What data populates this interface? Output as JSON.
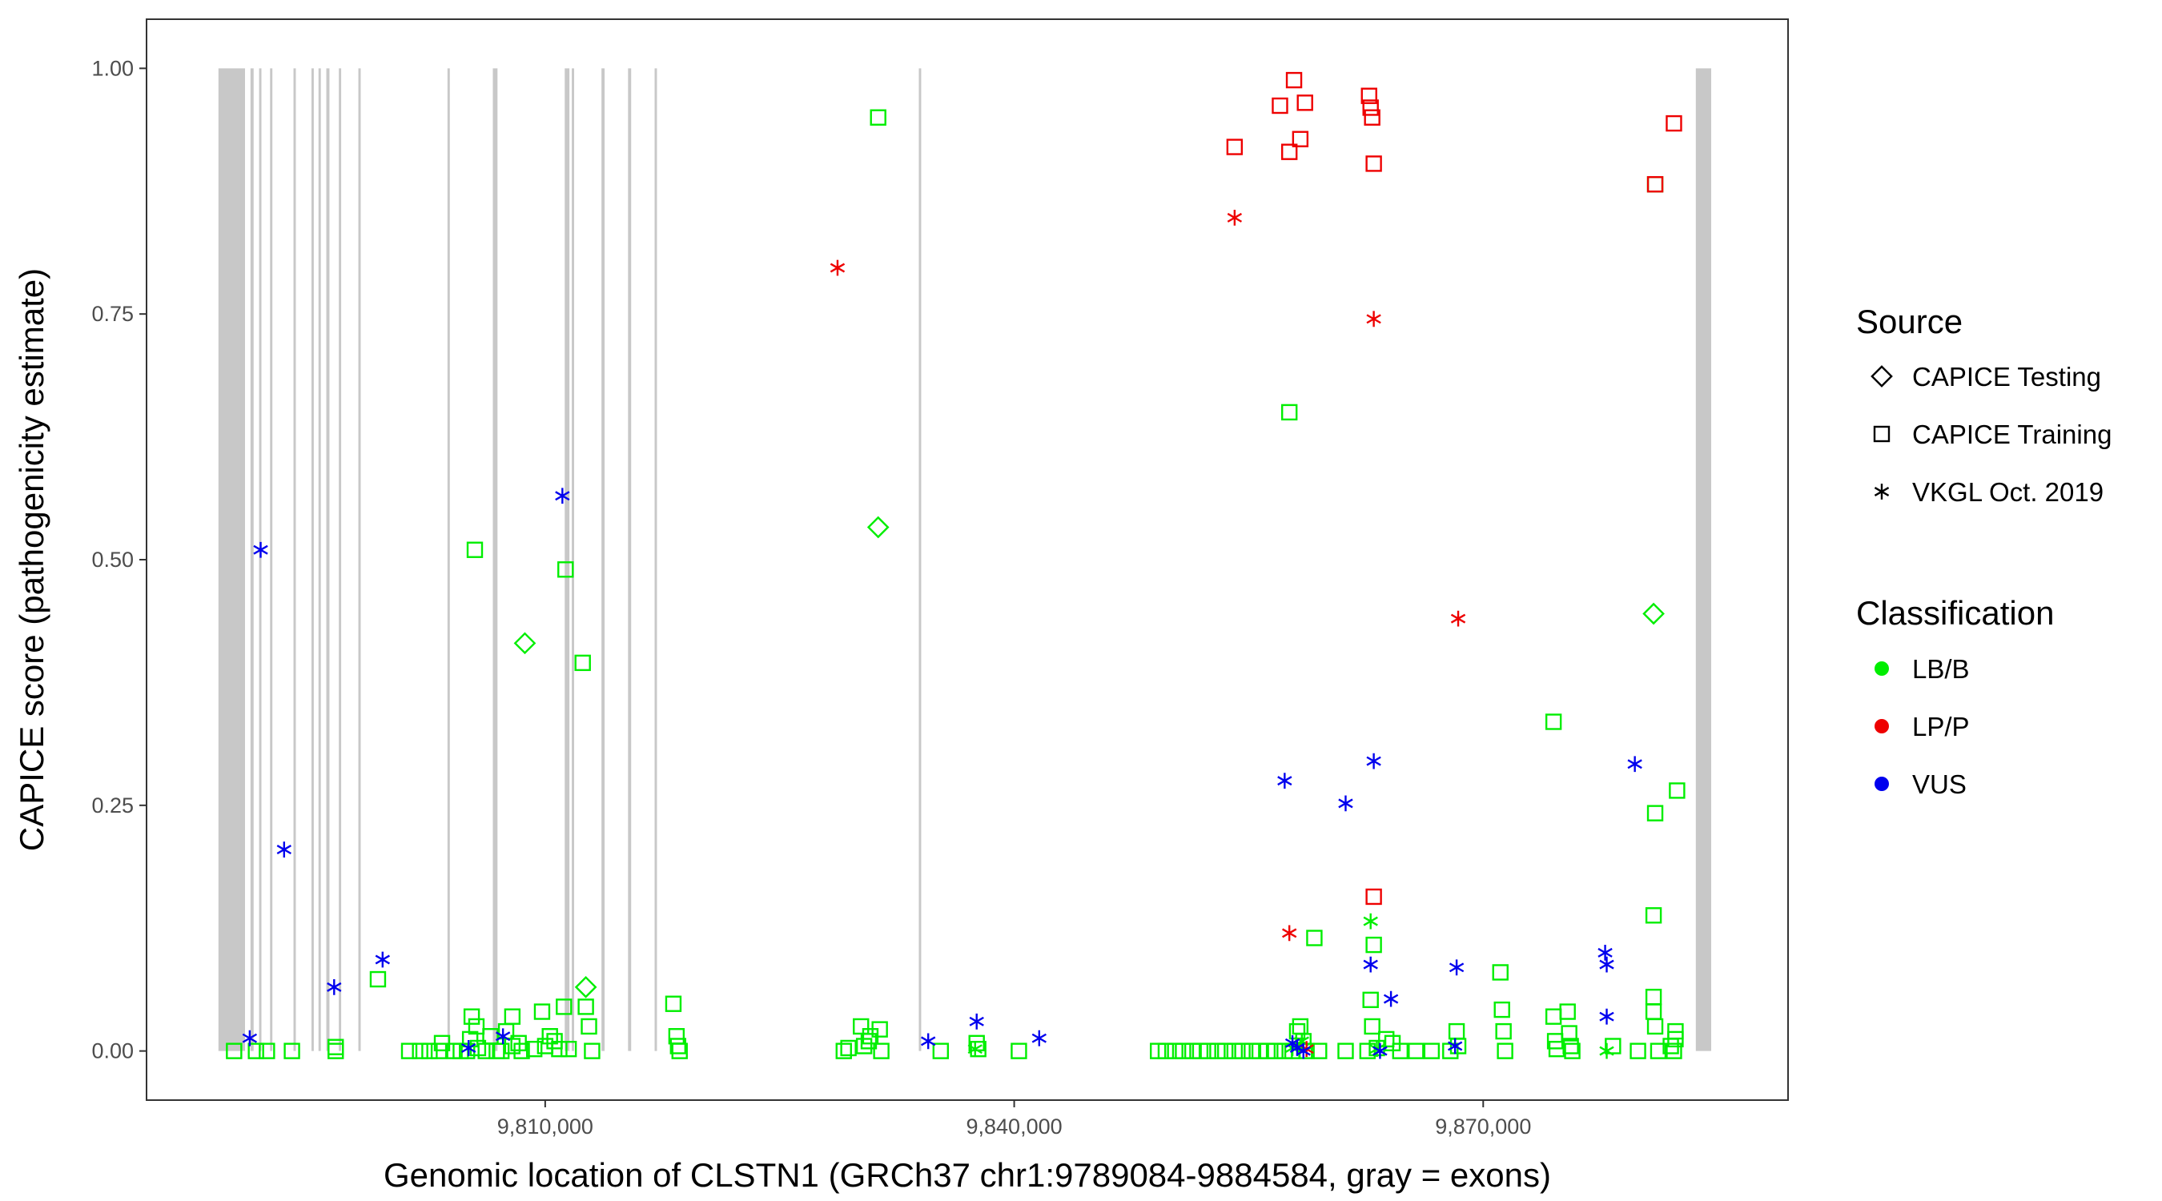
{
  "chart_data": {
    "type": "scatter",
    "title": "",
    "xlabel": "Genomic location of CLSTN1 (GRCh37 chr1:9789084-9884584, gray = exons)",
    "ylabel": "CAPICE score (pathogenicity estimate)",
    "xlim": [
      9784500,
      9889500
    ],
    "ylim": [
      -0.05,
      1.05
    ],
    "x_ticks": [
      9810000,
      9840000,
      9870000
    ],
    "x_tick_labels": [
      "9,810,000",
      "9,840,000",
      "9,870,000"
    ],
    "y_ticks": [
      0.0,
      0.25,
      0.5,
      0.75,
      1.0
    ],
    "y_tick_labels": [
      "0.00",
      "0.25",
      "0.50",
      "0.75",
      "1.00"
    ],
    "grid": false,
    "exon_color": "#c8c8c8",
    "exons": [
      [
        9789100,
        9790800
      ],
      [
        9791150,
        9791350
      ],
      [
        9791700,
        9791850
      ],
      [
        9792400,
        9792550
      ],
      [
        9793900,
        9794050
      ],
      [
        9795050,
        9795200
      ],
      [
        9795500,
        9795650
      ],
      [
        9796000,
        9796200
      ],
      [
        9796800,
        9796950
      ],
      [
        9798050,
        9798200
      ],
      [
        9803750,
        9803900
      ],
      [
        9806650,
        9806950
      ],
      [
        9811250,
        9811550
      ],
      [
        9811700,
        9811850
      ],
      [
        9813600,
        9813800
      ],
      [
        9815300,
        9815500
      ],
      [
        9817000,
        9817150
      ],
      [
        9833900,
        9834050
      ],
      [
        9883600,
        9884584
      ]
    ],
    "legend": {
      "placement": "right",
      "source_title": "Source",
      "classification_title": "Classification",
      "sources": [
        {
          "label": "CAPICE Testing",
          "shape": "diamond"
        },
        {
          "label": "CAPICE Training",
          "shape": "square"
        },
        {
          "label": "VKGL Oct. 2019",
          "shape": "asterisk"
        }
      ],
      "classifications": [
        {
          "label": "LB/B",
          "color": "#00ee00"
        },
        {
          "label": "LP/P",
          "color": "#ee0000"
        },
        {
          "label": "VUS",
          "color": "#0000ee"
        }
      ]
    },
    "series": [
      {
        "source": "CAPICE Training",
        "classification": "LB/B",
        "shape": "square",
        "color": "#00ee00",
        "points": [
          [
            9790100,
            0
          ],
          [
            9791500,
            0
          ],
          [
            9792200,
            0
          ],
          [
            9793800,
            0
          ],
          [
            9796600,
            0
          ],
          [
            9796600,
            0.004
          ],
          [
            9799300,
            0.073
          ],
          [
            9801300,
            0
          ],
          [
            9802000,
            0
          ],
          [
            9802600,
            0
          ],
          [
            9803200,
            0
          ],
          [
            9803400,
            0.008
          ],
          [
            9804200,
            0
          ],
          [
            9804600,
            0
          ],
          [
            9805000,
            0
          ],
          [
            9805200,
            0.012
          ],
          [
            9805300,
            0.035
          ],
          [
            9805500,
            0.51
          ],
          [
            9805600,
            0.025
          ],
          [
            9805700,
            0.003
          ],
          [
            9806200,
            0
          ],
          [
            9806500,
            0.015
          ],
          [
            9806900,
            0
          ],
          [
            9807200,
            0
          ],
          [
            9807500,
            0.02
          ],
          [
            9807900,
            0.035
          ],
          [
            9807900,
            0.005
          ],
          [
            9808300,
            0.008
          ],
          [
            9808500,
            0
          ],
          [
            9809300,
            0.002
          ],
          [
            9809800,
            0.04
          ],
          [
            9810000,
            0.005
          ],
          [
            9810300,
            0.015
          ],
          [
            9810600,
            0.01
          ],
          [
            9810900,
            0.002
          ],
          [
            9811200,
            0.045
          ],
          [
            9811300,
            0.49
          ],
          [
            9811500,
            0.002
          ],
          [
            9812400,
            0.395
          ],
          [
            9812600,
            0.045
          ],
          [
            9812800,
            0.025
          ],
          [
            9813000,
            0
          ],
          [
            9818200,
            0.048
          ],
          [
            9818400,
            0.015
          ],
          [
            9818500,
            0.005
          ],
          [
            9818600,
            0
          ],
          [
            9829100,
            0
          ],
          [
            9829400,
            0.003
          ],
          [
            9830200,
            0.025
          ],
          [
            9830400,
            0.005
          ],
          [
            9830700,
            0.01
          ],
          [
            9830800,
            0.015
          ],
          [
            9831300,
            0.95
          ],
          [
            9831400,
            0.022
          ],
          [
            9831500,
            0
          ],
          [
            9835300,
            0
          ],
          [
            9837600,
            0.008
          ],
          [
            9837700,
            0.002
          ],
          [
            9840300,
            0
          ],
          [
            9849200,
            0
          ],
          [
            9849700,
            0
          ],
          [
            9850300,
            0
          ],
          [
            9850800,
            0
          ],
          [
            9851400,
            0
          ],
          [
            9851900,
            0
          ],
          [
            9852400,
            0
          ],
          [
            9853000,
            0
          ],
          [
            9853500,
            0
          ],
          [
            9854100,
            0
          ],
          [
            9854600,
            0
          ],
          [
            9855200,
            0
          ],
          [
            9855700,
            0
          ],
          [
            9856200,
            0
          ],
          [
            9856700,
            0
          ],
          [
            9857300,
            0
          ],
          [
            9857600,
            0.65
          ],
          [
            9857800,
            0
          ],
          [
            9858100,
            0.02
          ],
          [
            9858300,
            0.025
          ],
          [
            9858500,
            0.01
          ],
          [
            9858700,
            0
          ],
          [
            9859200,
            0.115
          ],
          [
            9859500,
            0
          ],
          [
            9861200,
            0
          ],
          [
            9862600,
            0
          ],
          [
            9862800,
            0.052
          ],
          [
            9862900,
            0.025
          ],
          [
            9863000,
            0.108
          ],
          [
            9863200,
            0.003
          ],
          [
            9863800,
            0.012
          ],
          [
            9864200,
            0.008
          ],
          [
            9864700,
            0
          ],
          [
            9865700,
            0
          ],
          [
            9866700,
            0
          ],
          [
            9867900,
            0
          ],
          [
            9868300,
            0.02
          ],
          [
            9868400,
            0.005
          ],
          [
            9871100,
            0.08
          ],
          [
            9871200,
            0.042
          ],
          [
            9871300,
            0.02
          ],
          [
            9871400,
            0
          ],
          [
            9874500,
            0.335
          ],
          [
            9874500,
            0.035
          ],
          [
            9874600,
            0.01
          ],
          [
            9874700,
            0.002
          ],
          [
            9875400,
            0.04
          ],
          [
            9875500,
            0.018
          ],
          [
            9875600,
            0.005
          ],
          [
            9875700,
            0
          ],
          [
            9878300,
            0.005
          ],
          [
            9879900,
            0
          ],
          [
            9880900,
            0.055
          ],
          [
            9880900,
            0.04
          ],
          [
            9880900,
            0.138
          ],
          [
            9881000,
            0.882
          ],
          [
            9881000,
            0.242
          ],
          [
            9881000,
            0.025
          ],
          [
            9881200,
            0
          ],
          [
            9882000,
            0.005
          ],
          [
            9882200,
            0
          ],
          [
            9882300,
            0.012
          ],
          [
            9882300,
            0.02
          ],
          [
            9882400,
            0.265
          ]
        ]
      },
      {
        "source": "CAPICE Training",
        "classification": "LP/P",
        "shape": "square",
        "color": "#ee0000",
        "points": [
          [
            9854100,
            0.92
          ],
          [
            9857000,
            0.962
          ],
          [
            9857600,
            0.915
          ],
          [
            9857900,
            0.988
          ],
          [
            9858300,
            0.928
          ],
          [
            9858600,
            0.965
          ],
          [
            9862700,
            0.972
          ],
          [
            9862800,
            0.96
          ],
          [
            9862900,
            0.95
          ],
          [
            9863000,
            0.903
          ],
          [
            9863000,
            0.157
          ],
          [
            9881000,
            0.882
          ],
          [
            9882200,
            0.944
          ]
        ]
      },
      {
        "source": "CAPICE Testing",
        "classification": "LB/B",
        "shape": "diamond",
        "color": "#00ee00",
        "points": [
          [
            9808700,
            0.415
          ],
          [
            9812600,
            0.065
          ],
          [
            9831300,
            0.533
          ],
          [
            9880900,
            0.445
          ]
        ]
      },
      {
        "source": "VKGL Oct. 2019",
        "classification": "LB/B",
        "shape": "asterisk",
        "color": "#00ee00",
        "points": [
          [
            9837500,
            0.002
          ],
          [
            9857800,
            0.003
          ],
          [
            9858400,
            0.01
          ],
          [
            9862800,
            0.132
          ],
          [
            9863200,
            0.002
          ],
          [
            9877900,
            0
          ]
        ]
      },
      {
        "source": "VKGL Oct. 2019",
        "classification": "LP/P",
        "shape": "asterisk",
        "color": "#ee0000",
        "points": [
          [
            9828700,
            0.797
          ],
          [
            9854100,
            0.848
          ],
          [
            9857600,
            0.12
          ],
          [
            9858700,
            0.002
          ],
          [
            9863000,
            0.745
          ],
          [
            9868400,
            0.44
          ]
        ]
      },
      {
        "source": "VKGL Oct. 2019",
        "classification": "VUS",
        "shape": "asterisk",
        "color": "#0000ee",
        "points": [
          [
            9791100,
            0.013
          ],
          [
            9791800,
            0.51
          ],
          [
            9793300,
            0.205
          ],
          [
            9796500,
            0.065
          ],
          [
            9799600,
            0.093
          ],
          [
            9805100,
            0.003
          ],
          [
            9807300,
            0.015
          ],
          [
            9811100,
            0.565
          ],
          [
            9834500,
            0.01
          ],
          [
            9837600,
            0.03
          ],
          [
            9841600,
            0.013
          ],
          [
            9857300,
            0.275
          ],
          [
            9857800,
            0.008
          ],
          [
            9858100,
            0.003
          ],
          [
            9858500,
            0
          ],
          [
            9861200,
            0.252
          ],
          [
            9862800,
            0.088
          ],
          [
            9863000,
            0.295
          ],
          [
            9863400,
            0
          ],
          [
            9864100,
            0.053
          ],
          [
            9868300,
            0.085
          ],
          [
            9868200,
            0.005
          ],
          [
            9877800,
            0.1
          ],
          [
            9877900,
            0.088
          ],
          [
            9877900,
            0.035
          ],
          [
            9879700,
            0.292
          ]
        ]
      }
    ]
  }
}
